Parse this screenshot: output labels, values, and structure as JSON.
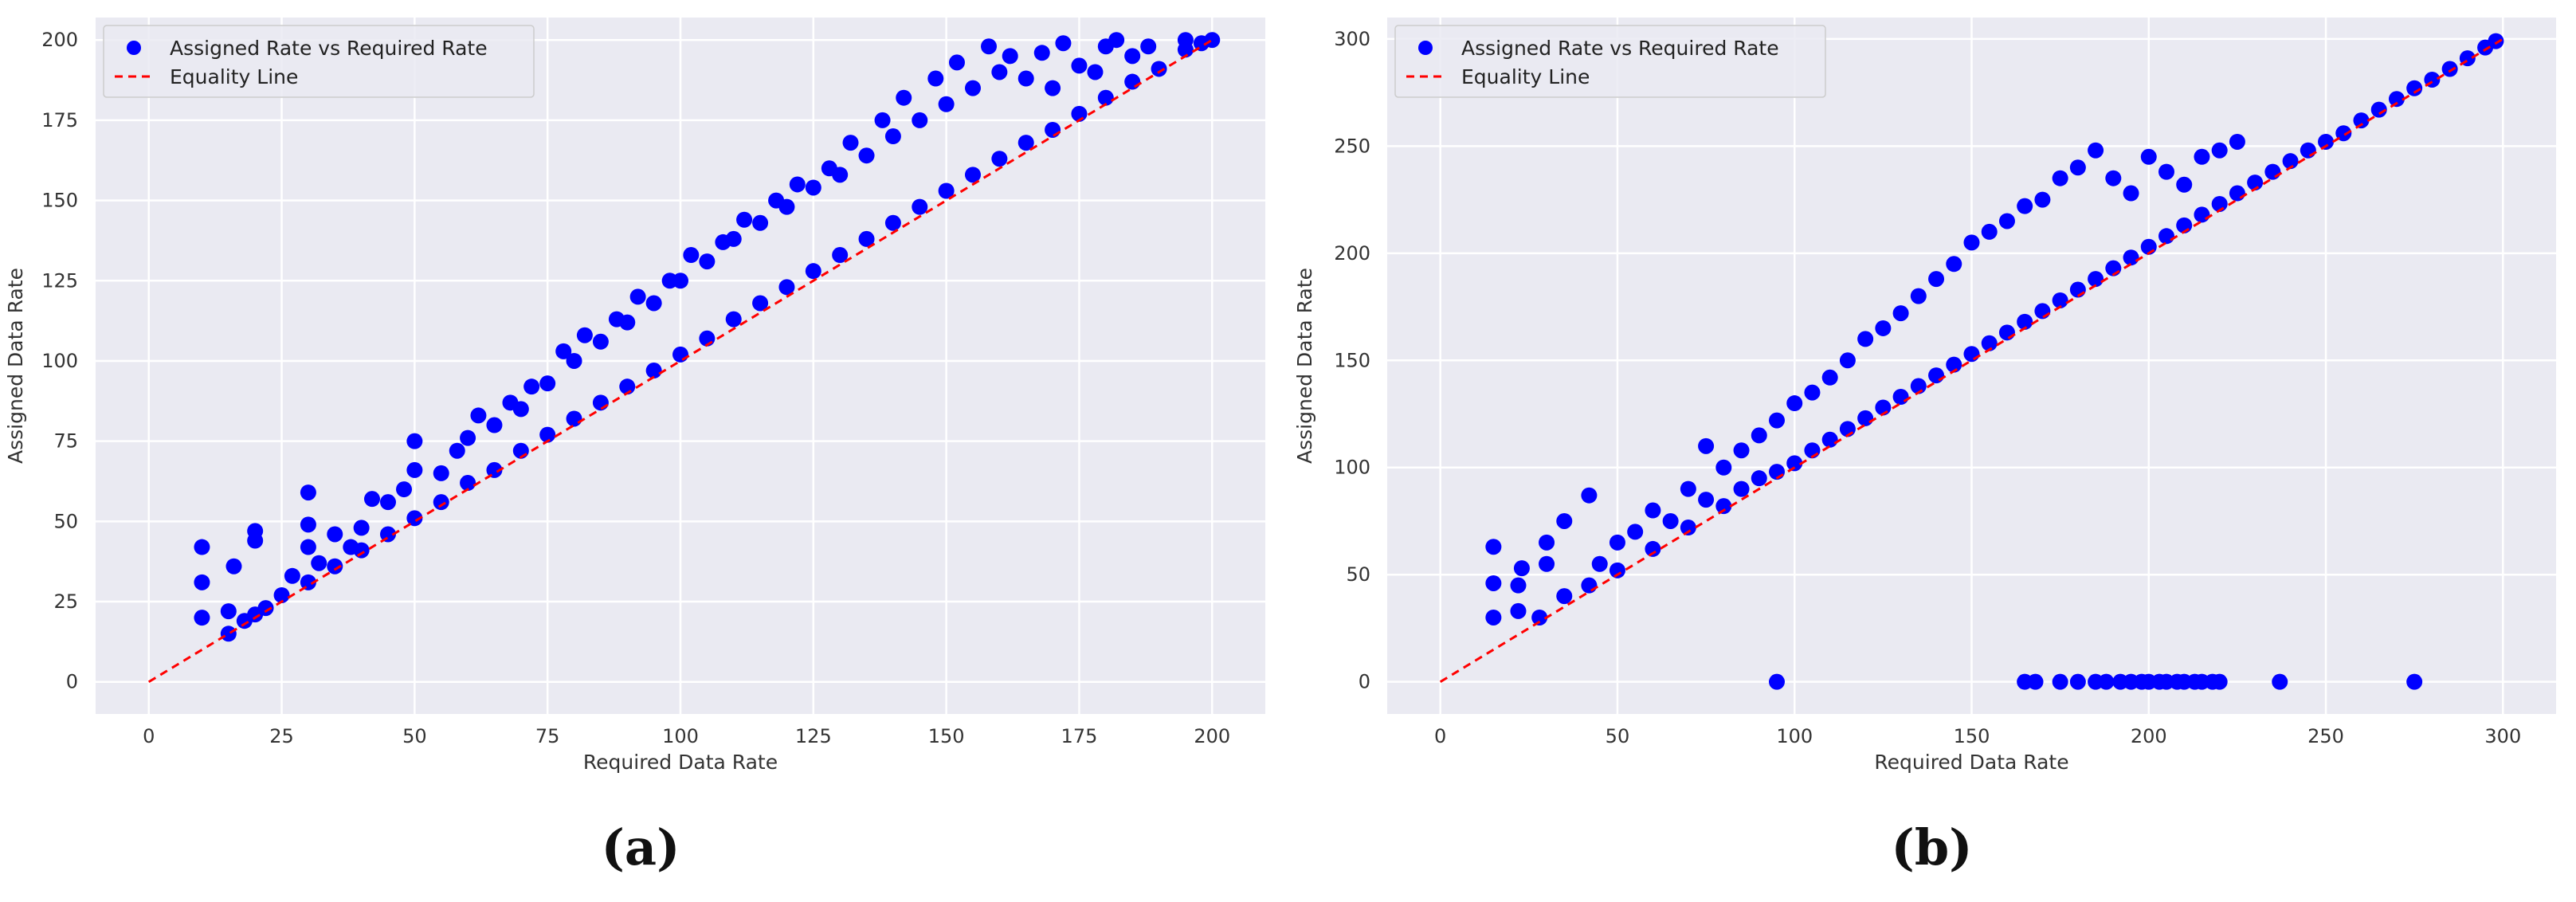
{
  "chart_data": [
    {
      "type": "scatter",
      "caption": "(a)",
      "xlabel": "Required Data Rate",
      "ylabel": "Assigned Data Rate",
      "xlim": [
        -10,
        210
      ],
      "ylim": [
        -10,
        207
      ],
      "xticks": [
        0,
        25,
        50,
        75,
        100,
        125,
        150,
        175,
        200
      ],
      "yticks": [
        0,
        25,
        50,
        75,
        100,
        125,
        150,
        175,
        200
      ],
      "grid": true,
      "legend_position": "top-left",
      "series": [
        {
          "name": "Assigned Rate vs Required Rate",
          "kind": "scatter",
          "color": "#0000ff",
          "points": [
            [
              10,
              20
            ],
            [
              10,
              31
            ],
            [
              10,
              42
            ],
            [
              15,
              15
            ],
            [
              15,
              22
            ],
            [
              16,
              36
            ],
            [
              18,
              19
            ],
            [
              20,
              21
            ],
            [
              20,
              44
            ],
            [
              20,
              47
            ],
            [
              22,
              23
            ],
            [
              25,
              27
            ],
            [
              27,
              33
            ],
            [
              30,
              31
            ],
            [
              30,
              42
            ],
            [
              30,
              49
            ],
            [
              30,
              59
            ],
            [
              32,
              37
            ],
            [
              35,
              36
            ],
            [
              35,
              46
            ],
            [
              38,
              42
            ],
            [
              40,
              41
            ],
            [
              40,
              48
            ],
            [
              42,
              57
            ],
            [
              45,
              46
            ],
            [
              45,
              56
            ],
            [
              48,
              60
            ],
            [
              50,
              51
            ],
            [
              50,
              66
            ],
            [
              50,
              75
            ],
            [
              55,
              56
            ],
            [
              55,
              65
            ],
            [
              58,
              72
            ],
            [
              60,
              62
            ],
            [
              60,
              76
            ],
            [
              62,
              83
            ],
            [
              65,
              66
            ],
            [
              65,
              80
            ],
            [
              68,
              87
            ],
            [
              70,
              72
            ],
            [
              70,
              85
            ],
            [
              72,
              92
            ],
            [
              75,
              77
            ],
            [
              75,
              93
            ],
            [
              78,
              103
            ],
            [
              80,
              82
            ],
            [
              80,
              100
            ],
            [
              82,
              108
            ],
            [
              85,
              87
            ],
            [
              85,
              106
            ],
            [
              88,
              113
            ],
            [
              90,
              92
            ],
            [
              90,
              112
            ],
            [
              92,
              120
            ],
            [
              95,
              97
            ],
            [
              95,
              118
            ],
            [
              98,
              125
            ],
            [
              100,
              102
            ],
            [
              100,
              125
            ],
            [
              102,
              133
            ],
            [
              105,
              107
            ],
            [
              105,
              131
            ],
            [
              108,
              137
            ],
            [
              110,
              113
            ],
            [
              110,
              138
            ],
            [
              112,
              144
            ],
            [
              115,
              118
            ],
            [
              115,
              143
            ],
            [
              118,
              150
            ],
            [
              120,
              123
            ],
            [
              120,
              148
            ],
            [
              122,
              155
            ],
            [
              125,
              128
            ],
            [
              125,
              154
            ],
            [
              128,
              160
            ],
            [
              130,
              133
            ],
            [
              130,
              158
            ],
            [
              132,
              168
            ],
            [
              135,
              138
            ],
            [
              135,
              164
            ],
            [
              138,
              175
            ],
            [
              140,
              143
            ],
            [
              140,
              170
            ],
            [
              142,
              182
            ],
            [
              145,
              148
            ],
            [
              145,
              175
            ],
            [
              148,
              188
            ],
            [
              150,
              153
            ],
            [
              150,
              180
            ],
            [
              152,
              193
            ],
            [
              155,
              158
            ],
            [
              155,
              185
            ],
            [
              158,
              198
            ],
            [
              160,
              163
            ],
            [
              160,
              190
            ],
            [
              162,
              195
            ],
            [
              165,
              168
            ],
            [
              165,
              188
            ],
            [
              168,
              196
            ],
            [
              170,
              172
            ],
            [
              170,
              185
            ],
            [
              172,
              199
            ],
            [
              175,
              177
            ],
            [
              175,
              192
            ],
            [
              178,
              190
            ],
            [
              180,
              182
            ],
            [
              180,
              198
            ],
            [
              182,
              200
            ],
            [
              185,
              187
            ],
            [
              185,
              195
            ],
            [
              188,
              198
            ],
            [
              190,
              191
            ],
            [
              195,
              197
            ],
            [
              195,
              200
            ],
            [
              198,
              199
            ],
            [
              200,
              200
            ]
          ]
        },
        {
          "name": "Equality Line",
          "kind": "line",
          "style": "dashed",
          "color": "#ff0000",
          "x": [
            0,
            200
          ],
          "y": [
            0,
            200
          ]
        }
      ]
    },
    {
      "type": "scatter",
      "caption": "(b)",
      "xlabel": "Required Data Rate",
      "ylabel": "Assigned Data Rate",
      "xlim": [
        -15,
        315
      ],
      "ylim": [
        -15,
        310
      ],
      "xticks": [
        0,
        50,
        100,
        150,
        200,
        250,
        300
      ],
      "yticks": [
        0,
        50,
        100,
        150,
        200,
        250,
        300
      ],
      "grid": true,
      "legend_position": "top-left",
      "series": [
        {
          "name": "Assigned Rate vs Required Rate",
          "kind": "scatter",
          "color": "#0000ff",
          "points": [
            [
              15,
              30
            ],
            [
              15,
              46
            ],
            [
              15,
              63
            ],
            [
              22,
              33
            ],
            [
              22,
              45
            ],
            [
              23,
              53
            ],
            [
              28,
              30
            ],
            [
              30,
              55
            ],
            [
              30,
              65
            ],
            [
              35,
              40
            ],
            [
              35,
              75
            ],
            [
              42,
              45
            ],
            [
              42,
              87
            ],
            [
              45,
              55
            ],
            [
              50,
              52
            ],
            [
              50,
              65
            ],
            [
              55,
              70
            ],
            [
              60,
              62
            ],
            [
              60,
              80
            ],
            [
              65,
              75
            ],
            [
              70,
              72
            ],
            [
              70,
              90
            ],
            [
              75,
              85
            ],
            [
              75,
              110
            ],
            [
              80,
              82
            ],
            [
              80,
              100
            ],
            [
              85,
              90
            ],
            [
              85,
              108
            ],
            [
              90,
              95
            ],
            [
              90,
              115
            ],
            [
              95,
              98
            ],
            [
              95,
              122
            ],
            [
              100,
              102
            ],
            [
              100,
              130
            ],
            [
              105,
              108
            ],
            [
              105,
              135
            ],
            [
              110,
              113
            ],
            [
              110,
              142
            ],
            [
              115,
              118
            ],
            [
              115,
              150
            ],
            [
              120,
              123
            ],
            [
              120,
              160
            ],
            [
              125,
              128
            ],
            [
              125,
              165
            ],
            [
              130,
              133
            ],
            [
              130,
              172
            ],
            [
              135,
              138
            ],
            [
              135,
              180
            ],
            [
              140,
              143
            ],
            [
              140,
              188
            ],
            [
              145,
              148
            ],
            [
              145,
              195
            ],
            [
              150,
              153
            ],
            [
              150,
              205
            ],
            [
              155,
              158
            ],
            [
              155,
              210
            ],
            [
              160,
              163
            ],
            [
              160,
              215
            ],
            [
              165,
              168
            ],
            [
              165,
              222
            ],
            [
              170,
              173
            ],
            [
              170,
              225
            ],
            [
              175,
              178
            ],
            [
              175,
              235
            ],
            [
              180,
              183
            ],
            [
              180,
              240
            ],
            [
              185,
              188
            ],
            [
              185,
              248
            ],
            [
              190,
              193
            ],
            [
              190,
              235
            ],
            [
              195,
              198
            ],
            [
              195,
              228
            ],
            [
              200,
              203
            ],
            [
              200,
              245
            ],
            [
              205,
              208
            ],
            [
              205,
              238
            ],
            [
              210,
              213
            ],
            [
              210,
              232
            ],
            [
              215,
              218
            ],
            [
              215,
              245
            ],
            [
              220,
              223
            ],
            [
              220,
              248
            ],
            [
              225,
              228
            ],
            [
              225,
              252
            ],
            [
              230,
              233
            ],
            [
              235,
              238
            ],
            [
              240,
              243
            ],
            [
              245,
              248
            ],
            [
              250,
              252
            ],
            [
              255,
              256
            ],
            [
              260,
              262
            ],
            [
              265,
              267
            ],
            [
              270,
              272
            ],
            [
              275,
              277
            ],
            [
              280,
              281
            ],
            [
              285,
              286
            ],
            [
              290,
              291
            ],
            [
              295,
              296
            ],
            [
              298,
              299
            ],
            [
              95,
              0
            ],
            [
              165,
              0
            ],
            [
              168,
              0
            ],
            [
              175,
              0
            ],
            [
              180,
              0
            ],
            [
              185,
              0
            ],
            [
              188,
              0
            ],
            [
              192,
              0
            ],
            [
              195,
              0
            ],
            [
              198,
              0
            ],
            [
              200,
              0
            ],
            [
              203,
              0
            ],
            [
              205,
              0
            ],
            [
              208,
              0
            ],
            [
              210,
              0
            ],
            [
              213,
              0
            ],
            [
              215,
              0
            ],
            [
              218,
              0
            ],
            [
              220,
              0
            ],
            [
              237,
              0
            ],
            [
              275,
              0
            ]
          ]
        },
        {
          "name": "Equality Line",
          "kind": "line",
          "style": "dashed",
          "color": "#ff0000",
          "x": [
            0,
            300
          ],
          "y": [
            0,
            300
          ]
        }
      ]
    }
  ]
}
